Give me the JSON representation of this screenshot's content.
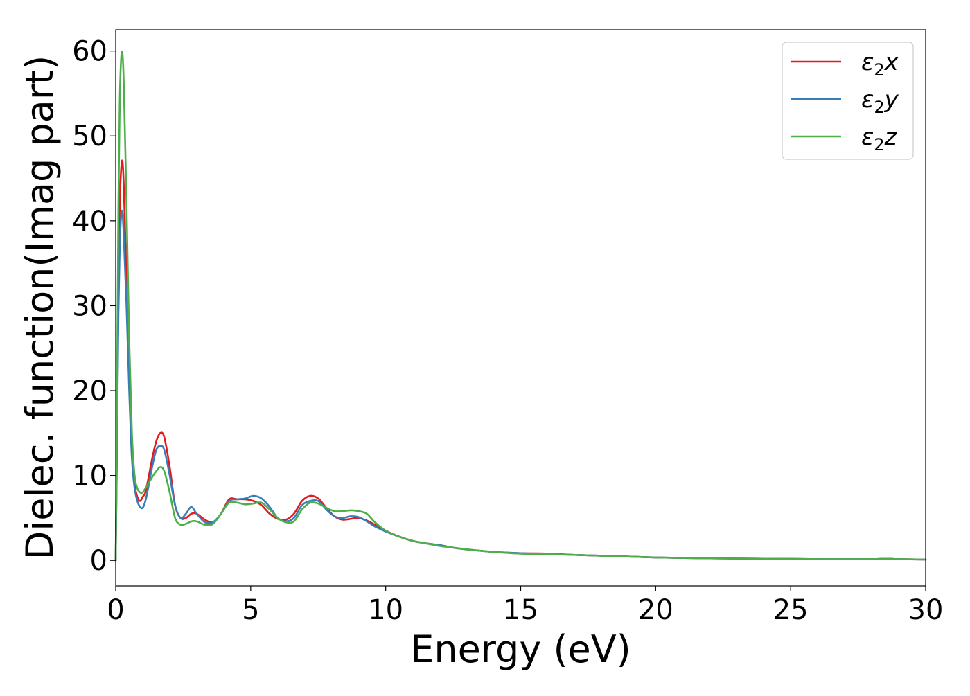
{
  "chart_data": {
    "type": "line",
    "title": "",
    "xlabel": "Energy (eV)",
    "ylabel": "Dielec. function(Imag part)",
    "xlim": [
      0,
      30
    ],
    "ylim": [
      -3,
      62.5
    ],
    "xticks": [
      0,
      5,
      10,
      15,
      20,
      25,
      30
    ],
    "yticks": [
      0,
      10,
      20,
      30,
      40,
      50,
      60
    ],
    "grid": false,
    "legend_position": "top-right",
    "series": [
      {
        "name": "ε2x",
        "legend_base": "ε",
        "legend_sub": "2",
        "legend_suffix": "x",
        "color": "#e41a1c",
        "x": [
          0,
          0.05,
          0.1,
          0.15,
          0.2,
          0.25,
          0.3,
          0.4,
          0.5,
          0.6,
          0.7,
          0.8,
          0.9,
          1.0,
          1.1,
          1.2,
          1.35,
          1.5,
          1.65,
          1.8,
          2.0,
          2.2,
          2.4,
          2.6,
          2.8,
          3.0,
          3.3,
          3.6,
          3.9,
          4.2,
          4.5,
          4.8,
          5.1,
          5.4,
          5.7,
          6.0,
          6.3,
          6.6,
          6.9,
          7.2,
          7.5,
          7.8,
          8.1,
          8.4,
          8.7,
          9.0,
          9.3,
          9.6,
          10.0,
          10.5,
          11.0,
          11.5,
          12.0,
          12.5,
          13.0,
          14.0,
          15.0,
          16.0,
          17.0,
          18.0,
          19.0,
          20.0,
          22.0,
          24.0,
          26.0,
          28.0,
          28.5,
          29.0,
          30.0
        ],
        "y": [
          0,
          15,
          32,
          42,
          46,
          47,
          44,
          33,
          22,
          13,
          9,
          7.5,
          7,
          7.5,
          8,
          9.5,
          12,
          14,
          15,
          14.5,
          11,
          6.5,
          5,
          5,
          5.5,
          5.5,
          4.8,
          4.5,
          5.5,
          7.2,
          7.2,
          7.2,
          7,
          6.5,
          5.5,
          4.9,
          4.8,
          5.5,
          7.0,
          7.6,
          7.3,
          6.2,
          5.2,
          4.8,
          4.9,
          5.0,
          4.7,
          4.2,
          3.5,
          2.8,
          2.3,
          2.0,
          1.8,
          1.5,
          1.3,
          1.0,
          0.85,
          0.8,
          0.65,
          0.55,
          0.45,
          0.35,
          0.25,
          0.2,
          0.15,
          0.15,
          0.2,
          0.15,
          0.1
        ]
      },
      {
        "name": "ε2y",
        "legend_base": "ε",
        "legend_sub": "2",
        "legend_suffix": "y",
        "color": "#377eb8",
        "x": [
          0,
          0.05,
          0.1,
          0.15,
          0.2,
          0.25,
          0.3,
          0.4,
          0.5,
          0.6,
          0.7,
          0.8,
          0.9,
          1.0,
          1.1,
          1.2,
          1.35,
          1.5,
          1.65,
          1.8,
          2.0,
          2.2,
          2.4,
          2.6,
          2.8,
          3.0,
          3.3,
          3.6,
          3.9,
          4.2,
          4.5,
          4.8,
          5.1,
          5.4,
          5.7,
          6.0,
          6.3,
          6.6,
          6.9,
          7.2,
          7.5,
          7.8,
          8.1,
          8.4,
          8.7,
          9.0,
          9.3,
          9.6,
          10.0,
          10.5,
          11.0,
          11.5,
          12.0,
          12.5,
          13.0,
          14.0,
          15.0,
          16.0,
          17.0,
          18.0,
          19.0,
          20.0,
          22.0,
          24.0,
          26.0,
          28.0,
          28.5,
          29.0,
          30.0
        ],
        "y": [
          0,
          14,
          29,
          37,
          40.5,
          41,
          38,
          30,
          20,
          12,
          8.5,
          7,
          6.3,
          6.2,
          7,
          8.5,
          11,
          13,
          13.5,
          13,
          10,
          6.5,
          5,
          5.5,
          6.3,
          5.5,
          4.5,
          4.5,
          5.5,
          7,
          7.2,
          7.3,
          7.6,
          7.3,
          6.3,
          5,
          4.6,
          5.0,
          6.5,
          7.0,
          7.0,
          6.0,
          5.2,
          5.0,
          5.2,
          5.1,
          4.6,
          4.0,
          3.4,
          2.8,
          2.3,
          2.0,
          1.8,
          1.5,
          1.3,
          1.0,
          0.85,
          0.75,
          0.65,
          0.55,
          0.45,
          0.35,
          0.25,
          0.2,
          0.15,
          0.15,
          0.2,
          0.15,
          0.1
        ]
      },
      {
        "name": "ε2z",
        "legend_base": "ε",
        "legend_sub": "2",
        "legend_suffix": "z",
        "color": "#4daf4a",
        "x": [
          0,
          0.05,
          0.1,
          0.15,
          0.2,
          0.25,
          0.3,
          0.4,
          0.5,
          0.6,
          0.7,
          0.8,
          0.9,
          1.0,
          1.1,
          1.2,
          1.35,
          1.5,
          1.65,
          1.8,
          2.0,
          2.2,
          2.4,
          2.6,
          2.8,
          3.0,
          3.3,
          3.6,
          3.9,
          4.2,
          4.5,
          4.8,
          5.1,
          5.4,
          5.7,
          6.0,
          6.3,
          6.6,
          6.9,
          7.2,
          7.5,
          7.8,
          8.1,
          8.4,
          8.7,
          9.0,
          9.3,
          9.6,
          10.0,
          10.5,
          11.0,
          11.5,
          12.0,
          12.5,
          13.0,
          14.0,
          15.0,
          16.0,
          17.0,
          18.0,
          19.0,
          20.0,
          22.0,
          24.0,
          26.0,
          28.0,
          28.5,
          29.0,
          30.0
        ],
        "y": [
          0,
          20,
          42,
          54,
          59,
          59.7,
          56,
          42,
          26,
          15,
          10,
          8.5,
          8,
          8,
          8.5,
          9,
          9.8,
          10.5,
          11,
          10.5,
          8,
          5,
          4.2,
          4.3,
          4.6,
          4.6,
          4.2,
          4.3,
          5.5,
          6.8,
          6.8,
          6.6,
          6.7,
          6.8,
          6.0,
          5.0,
          4.5,
          4.6,
          6.0,
          6.8,
          6.7,
          6.2,
          5.8,
          5.8,
          5.9,
          5.8,
          5.5,
          4.5,
          3.5,
          2.8,
          2.3,
          2.0,
          1.7,
          1.5,
          1.3,
          1.0,
          0.8,
          0.75,
          0.65,
          0.55,
          0.45,
          0.35,
          0.25,
          0.2,
          0.15,
          0.15,
          0.2,
          0.15,
          0.1
        ]
      }
    ]
  }
}
